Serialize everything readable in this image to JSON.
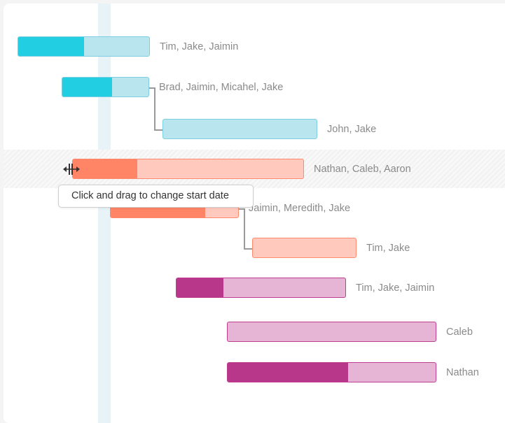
{
  "colors": {
    "cyan": "#22cfe2",
    "cyan_light": "#b9e5ee",
    "cyan_border": "#7fcde0",
    "orange": "#ff8566",
    "orange_light": "#ffc9bd",
    "orange_border": "#ff8a6e",
    "magenta": "#b8378a",
    "magenta_light": "#e6b4d4",
    "magenta_border": "#bd3d8f",
    "today_column": "#e8f3f7"
  },
  "tasks": [
    {
      "assignees": "Tim, Jake, Jaimin",
      "progress": 50,
      "color": "cyan"
    },
    {
      "assignees": "Brad, Jaimin, Micahel, Jake",
      "progress": 58,
      "color": "cyan"
    },
    {
      "assignees": "John, Jake",
      "progress": 0,
      "color": "cyan"
    },
    {
      "assignees": "Nathan, Caleb, Aaron",
      "progress": 28,
      "color": "orange",
      "selected": true
    },
    {
      "assignees": "Jaimin, Meredith, Jake",
      "progress": 74,
      "color": "orange"
    },
    {
      "assignees": "Tim, Jake",
      "progress": 0,
      "color": "orange"
    },
    {
      "assignees": "Tim, Jake, Jaimin",
      "progress": 28,
      "color": "magenta"
    },
    {
      "assignees": "Caleb",
      "progress": 0,
      "color": "magenta"
    },
    {
      "assignees": "Nathan",
      "progress": 58,
      "color": "magenta"
    }
  ],
  "tooltip": {
    "text": "Click and drag to change start date"
  },
  "cursor_icon": "resize-horizontal-icon"
}
